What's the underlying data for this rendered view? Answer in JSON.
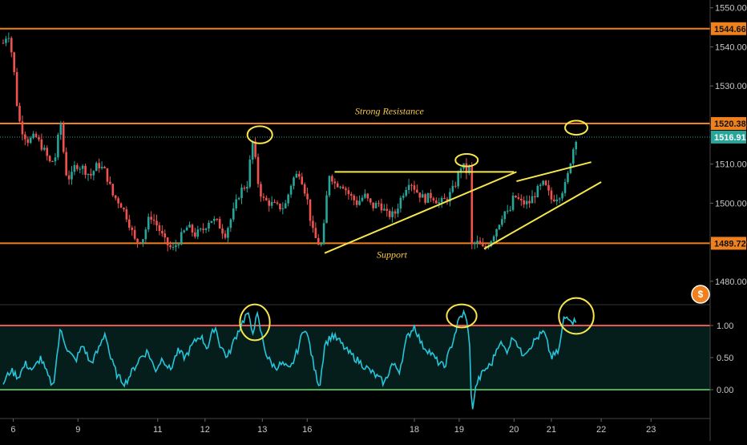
{
  "chart_data": {
    "type": "candlestick",
    "symbol_badge": "$",
    "price_axis": {
      "ylim": [
        1474,
        1552
      ],
      "ticks": [
        1550.0,
        1540.0,
        1530.0,
        1520.0,
        1510.0,
        1500.0,
        1490.0,
        1480.0
      ],
      "tick_labels": [
        "1550.00",
        "1540.00",
        "1530.00",
        "1520.00",
        "1510.00",
        "1500.00",
        "1490.00",
        "1480.00"
      ]
    },
    "time_axis": {
      "labels": [
        "6",
        "9",
        "11",
        "12",
        "13",
        "16",
        "18",
        "19",
        "20",
        "21",
        "22",
        "23"
      ],
      "positions": [
        0.4,
        3.0,
        6.2,
        8.1,
        10.4,
        12.2,
        16.5,
        18.3,
        20.5,
        22.0,
        24.0,
        26.0
      ],
      "xlim": [
        0,
        28.5
      ]
    },
    "horizontal_levels": [
      {
        "name": "resistance_high",
        "value": 1544.66,
        "label": "1544.66",
        "color": "#f0801c"
      },
      {
        "name": "strong_resistance",
        "value": 1520.38,
        "label": "1520.38",
        "color": "#f0801c"
      },
      {
        "name": "support",
        "value": 1489.72,
        "label": "1489.72",
        "color": "#f0801c"
      }
    ],
    "last_price": {
      "value": 1516.91,
      "label": "1516.91",
      "color": "#26a69a"
    },
    "annotations": [
      {
        "text": "Strong Resistance",
        "x": 15.5,
        "y": 1522.7
      },
      {
        "text": "Support",
        "x": 15.6,
        "y": 1486.0
      }
    ],
    "price_path": [
      [
        0.0,
        1541
      ],
      [
        0.2,
        1544
      ],
      [
        0.4,
        1536
      ],
      [
        0.6,
        1522
      ],
      [
        0.8,
        1518
      ],
      [
        1.0,
        1516
      ],
      [
        1.3,
        1517
      ],
      [
        1.6,
        1514
      ],
      [
        1.9,
        1510
      ],
      [
        2.1,
        1512
      ],
      [
        2.3,
        1521
      ],
      [
        2.5,
        1508
      ],
      [
        2.7,
        1506
      ],
      [
        2.9,
        1510
      ],
      [
        3.2,
        1509
      ],
      [
        3.5,
        1507
      ],
      [
        3.8,
        1510
      ],
      [
        4.1,
        1508
      ],
      [
        4.4,
        1502
      ],
      [
        4.7,
        1500
      ],
      [
        5.0,
        1496
      ],
      [
        5.3,
        1490
      ],
      [
        5.6,
        1491
      ],
      [
        5.9,
        1497
      ],
      [
        6.2,
        1494
      ],
      [
        6.5,
        1490
      ],
      [
        6.8,
        1488
      ],
      [
        7.1,
        1491
      ],
      [
        7.4,
        1494
      ],
      [
        7.7,
        1492
      ],
      [
        8.0,
        1493
      ],
      [
        8.3,
        1496
      ],
      [
        8.6,
        1495
      ],
      [
        8.9,
        1492
      ],
      [
        9.2,
        1497
      ],
      [
        9.5,
        1503
      ],
      [
        9.8,
        1505
      ],
      [
        10.0,
        1516
      ],
      [
        10.1,
        1512
      ],
      [
        10.2,
        1506
      ],
      [
        10.4,
        1501
      ],
      [
        10.7,
        1500
      ],
      [
        11.0,
        1499
      ],
      [
        11.3,
        1499
      ],
      [
        11.6,
        1506
      ],
      [
        11.9,
        1508
      ],
      [
        12.2,
        1501
      ],
      [
        12.4,
        1493
      ],
      [
        12.6,
        1490
      ],
      [
        12.8,
        1489
      ],
      [
        13.0,
        1503
      ],
      [
        13.1,
        1508
      ],
      [
        13.3,
        1505
      ],
      [
        13.6,
        1505
      ],
      [
        13.9,
        1502
      ],
      [
        14.2,
        1500
      ],
      [
        14.5,
        1502
      ],
      [
        14.8,
        1499
      ],
      [
        15.1,
        1500
      ],
      [
        15.4,
        1497
      ],
      [
        15.7,
        1497
      ],
      [
        16.0,
        1502
      ],
      [
        16.3,
        1506
      ],
      [
        16.6,
        1503
      ],
      [
        16.9,
        1501
      ],
      [
        17.2,
        1502
      ],
      [
        17.5,
        1500
      ],
      [
        17.8,
        1501
      ],
      [
        18.1,
        1504
      ],
      [
        18.4,
        1510
      ],
      [
        18.6,
        1508
      ],
      [
        18.7,
        1509
      ],
      [
        18.8,
        1489
      ],
      [
        19.0,
        1490
      ],
      [
        19.3,
        1488
      ],
      [
        19.6,
        1491
      ],
      [
        19.9,
        1495
      ],
      [
        20.1,
        1498
      ],
      [
        20.3,
        1497
      ],
      [
        20.5,
        1502
      ],
      [
        20.8,
        1500
      ],
      [
        21.1,
        1500
      ],
      [
        21.4,
        1503
      ],
      [
        21.7,
        1505
      ],
      [
        22.0,
        1501
      ],
      [
        22.3,
        1502
      ],
      [
        22.6,
        1505
      ],
      [
        22.8,
        1512
      ],
      [
        23.0,
        1517
      ]
    ],
    "trendlines": [
      {
        "name": "triangle_top",
        "points": [
          [
            13.3,
            1508.0
          ],
          [
            20.5,
            1508.0
          ]
        ],
        "color": "#f7e64c"
      },
      {
        "name": "triangle_base",
        "points": [
          [
            12.9,
            1487.2
          ],
          [
            20.6,
            1508.0
          ]
        ],
        "color": "#f7e64c"
      },
      {
        "name": "rising_channel_upper",
        "points": [
          [
            20.6,
            1505.6
          ],
          [
            23.6,
            1510.5
          ]
        ],
        "color": "#f7e64c"
      },
      {
        "name": "rising_channel_lower",
        "points": [
          [
            19.3,
            1488.3
          ],
          [
            24.0,
            1505.4
          ]
        ],
        "color": "#f7e64c"
      }
    ],
    "highlight_circles": [
      {
        "x": 10.3,
        "y": 1517.5,
        "rx": 0.5,
        "ry": 2.2
      },
      {
        "x": 18.6,
        "y": 1511.0,
        "rx": 0.45,
        "ry": 1.6
      },
      {
        "x": 23.0,
        "y": 1519.3,
        "rx": 0.45,
        "ry": 1.8
      }
    ],
    "oscillator": {
      "ylim": [
        -0.45,
        1.3
      ],
      "ticks": [
        1.0,
        0.5,
        0.0
      ],
      "tick_labels": [
        "1.00",
        "0.50",
        "0.00"
      ],
      "levels": [
        {
          "name": "overbought",
          "value": 1.0,
          "color": "#ef5350"
        },
        {
          "name": "oversold",
          "value": 0.0,
          "color": "#4caf50"
        }
      ],
      "values": [
        [
          0.0,
          0.1
        ],
        [
          0.3,
          0.3
        ],
        [
          0.6,
          0.2
        ],
        [
          0.9,
          0.4
        ],
        [
          1.2,
          0.3
        ],
        [
          1.5,
          0.5
        ],
        [
          1.8,
          0.2
        ],
        [
          2.0,
          0.05
        ],
        [
          2.3,
          0.95
        ],
        [
          2.6,
          0.6
        ],
        [
          2.9,
          0.45
        ],
        [
          3.2,
          0.7
        ],
        [
          3.5,
          0.4
        ],
        [
          3.8,
          0.6
        ],
        [
          4.1,
          0.9
        ],
        [
          4.3,
          0.5
        ],
        [
          4.6,
          0.2
        ],
        [
          4.9,
          0.1
        ],
        [
          5.2,
          0.3
        ],
        [
          5.5,
          0.5
        ],
        [
          5.8,
          0.6
        ],
        [
          6.1,
          0.3
        ],
        [
          6.4,
          0.5
        ],
        [
          6.7,
          0.3
        ],
        [
          7.0,
          0.6
        ],
        [
          7.3,
          0.5
        ],
        [
          7.6,
          0.7
        ],
        [
          7.9,
          0.85
        ],
        [
          8.2,
          0.65
        ],
        [
          8.5,
          1.0
        ],
        [
          8.7,
          0.7
        ],
        [
          9.0,
          0.5
        ],
        [
          9.3,
          0.8
        ],
        [
          9.6,
          1.05
        ],
        [
          9.8,
          1.2
        ],
        [
          10.0,
          0.9
        ],
        [
          10.2,
          1.15
        ],
        [
          10.4,
          0.8
        ],
        [
          10.6,
          0.5
        ],
        [
          10.9,
          0.35
        ],
        [
          11.2,
          0.4
        ],
        [
          11.5,
          0.3
        ],
        [
          11.8,
          0.6
        ],
        [
          12.1,
          1.0
        ],
        [
          12.3,
          0.7
        ],
        [
          12.5,
          0.3
        ],
        [
          12.7,
          0.05
        ],
        [
          12.9,
          0.7
        ],
        [
          13.2,
          0.85
        ],
        [
          13.5,
          0.75
        ],
        [
          13.8,
          0.6
        ],
        [
          14.1,
          0.5
        ],
        [
          14.4,
          0.4
        ],
        [
          14.7,
          0.3
        ],
        [
          15.0,
          0.2
        ],
        [
          15.3,
          0.1
        ],
        [
          15.6,
          0.4
        ],
        [
          15.9,
          0.3
        ],
        [
          16.2,
          0.8
        ],
        [
          16.5,
          1.0
        ],
        [
          16.8,
          0.7
        ],
        [
          17.1,
          0.6
        ],
        [
          17.4,
          0.45
        ],
        [
          17.7,
          0.35
        ],
        [
          18.0,
          0.7
        ],
        [
          18.3,
          1.1
        ],
        [
          18.5,
          1.2
        ],
        [
          18.7,
          0.9
        ],
        [
          18.8,
          -0.35
        ],
        [
          19.0,
          0.1
        ],
        [
          19.3,
          0.3
        ],
        [
          19.6,
          0.4
        ],
        [
          19.9,
          0.75
        ],
        [
          20.2,
          0.6
        ],
        [
          20.5,
          0.85
        ],
        [
          20.8,
          0.55
        ],
        [
          21.1,
          0.65
        ],
        [
          21.4,
          0.8
        ],
        [
          21.7,
          0.9
        ],
        [
          22.0,
          0.5
        ],
        [
          22.3,
          0.6
        ],
        [
          22.5,
          1.1
        ],
        [
          22.7,
          1.15
        ],
        [
          22.9,
          1.05
        ],
        [
          23.0,
          1.1
        ]
      ],
      "highlight_circles": [
        {
          "x": 10.1,
          "y": 1.05,
          "rx": 0.6,
          "ry": 0.28
        },
        {
          "x": 18.4,
          "y": 1.15,
          "rx": 0.6,
          "ry": 0.18
        },
        {
          "x": 23.0,
          "y": 1.15,
          "rx": 0.7,
          "ry": 0.28
        }
      ]
    }
  }
}
